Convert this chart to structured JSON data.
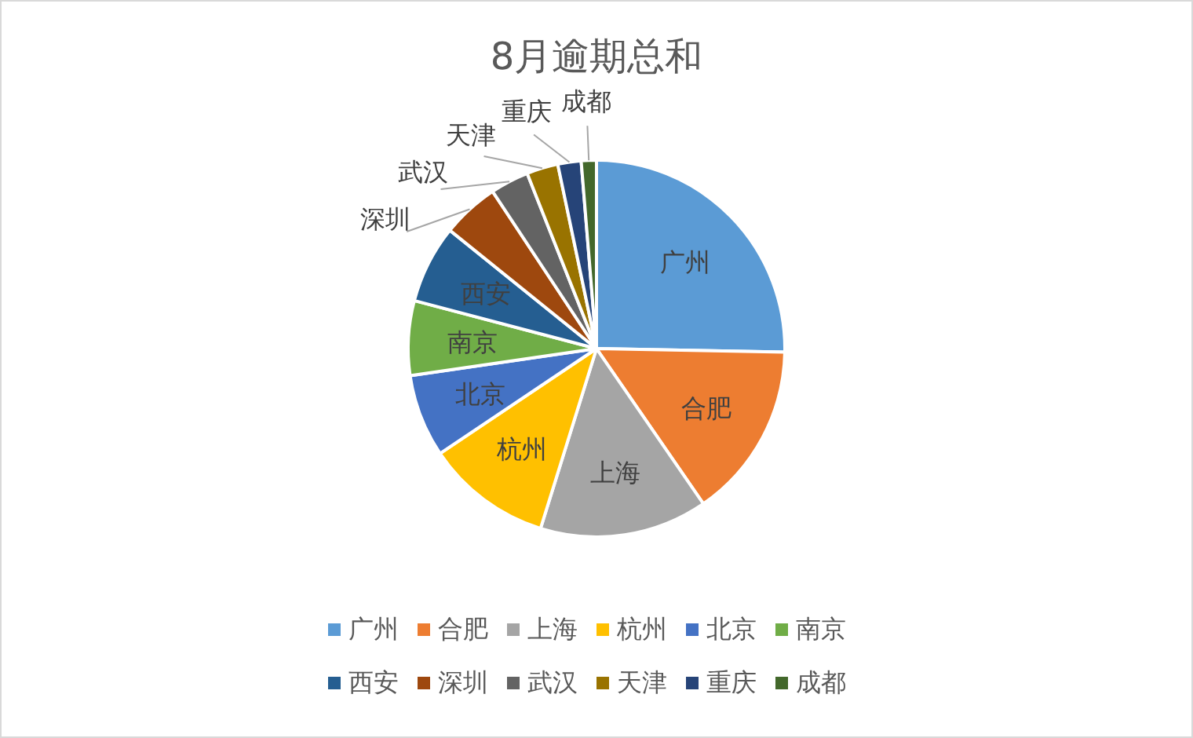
{
  "chart_data": {
    "type": "pie",
    "title": "8月逾期总和",
    "categories": [
      "广州",
      "合肥",
      "上海",
      "杭州",
      "北京",
      "南京",
      "西安",
      "深圳",
      "武汉",
      "天津",
      "重庆",
      "成都"
    ],
    "values": [
      25.3,
      15.1,
      14.4,
      10.8,
      7.1,
      6.4,
      6.7,
      4.9,
      3.3,
      2.7,
      2.0,
      1.3
    ],
    "colors": [
      "#5b9bd5",
      "#ed7d31",
      "#a5a5a5",
      "#ffc000",
      "#4472c4",
      "#70ad47",
      "#255e91",
      "#9e480e",
      "#636363",
      "#997300",
      "#264478",
      "#43682b"
    ],
    "legend": "bottom"
  }
}
